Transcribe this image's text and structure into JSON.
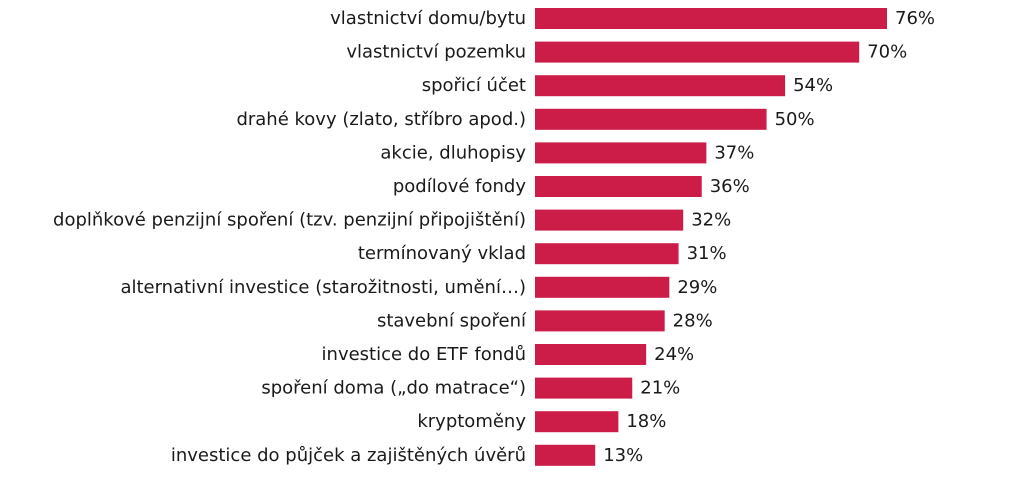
{
  "chart_data": {
    "type": "bar",
    "orientation": "horizontal",
    "categories": [
      "vlastnictví domu/bytu",
      "vlastnictví pozemku",
      "spořicí účet",
      "drahé kovy (zlato, stříbro apod.)",
      "akcie, dluhopisy",
      "podílové fondy",
      "doplňkové penzijní spoření (tzv. penzijní připojištění)",
      "termínovaný vklad",
      "alternativní investice (starožitnosti, umění…)",
      "stavební spoření",
      "investice do ETF fondů",
      "spoření doma („do matrace“)",
      "kryptoměny",
      "investice do půjček a zajištěných úvěrů"
    ],
    "values": [
      76,
      70,
      54,
      50,
      37,
      36,
      32,
      31,
      29,
      28,
      24,
      21,
      18,
      13
    ],
    "value_labels": [
      "76%",
      "70%",
      "54%",
      "50%",
      "37%",
      "36%",
      "32%",
      "31%",
      "29%",
      "28%",
      "24%",
      "21%",
      "18%",
      "13%"
    ],
    "unit": "%",
    "xlim": [
      0,
      76
    ],
    "title": "",
    "xlabel": "",
    "ylabel": "",
    "grid": false,
    "legend": false,
    "bar_color": "#cc1c48"
  }
}
